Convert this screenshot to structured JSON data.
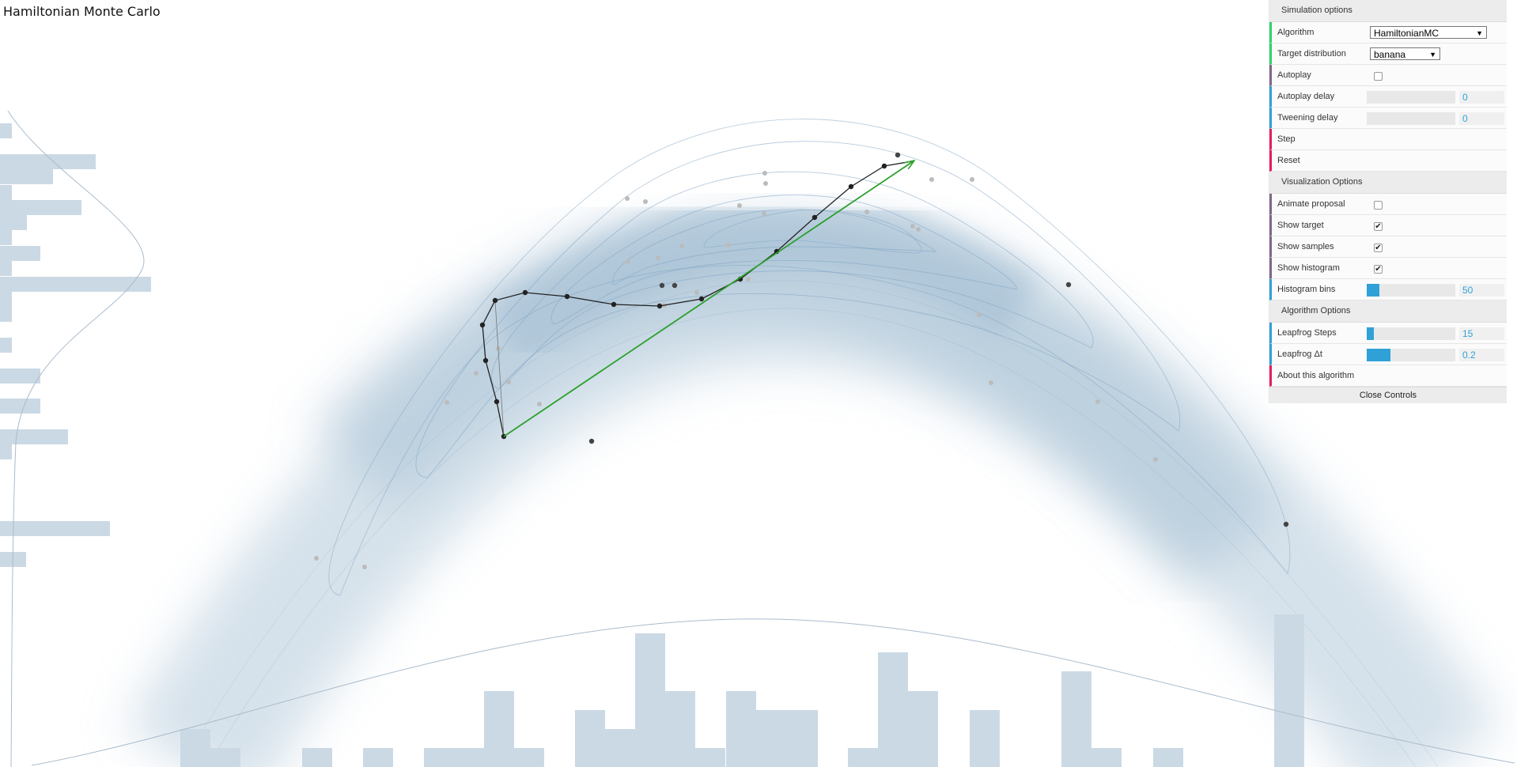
{
  "app": {
    "title": "Hamiltonian Monte Carlo"
  },
  "controls": {
    "sections": {
      "simulation": "Simulation options",
      "visualization": "Visualization Options",
      "algorithm": "Algorithm Options"
    },
    "algorithm": {
      "label": "Algorithm",
      "value": "HamiltonianMC"
    },
    "target": {
      "label": "Target distribution",
      "value": "banana"
    },
    "autoplay": {
      "label": "Autoplay",
      "checked": false
    },
    "autoplay_delay": {
      "label": "Autoplay delay",
      "value": "0",
      "fraction": 0
    },
    "tweening_delay": {
      "label": "Tweening delay",
      "value": "0",
      "fraction": 0
    },
    "step": {
      "label": "Step"
    },
    "reset": {
      "label": "Reset"
    },
    "animate_proposal": {
      "label": "Animate proposal",
      "checked": false
    },
    "show_target": {
      "label": "Show target",
      "checked": true
    },
    "show_samples": {
      "label": "Show samples",
      "checked": true
    },
    "show_histogram": {
      "label": "Show histogram",
      "checked": true
    },
    "histogram_bins": {
      "label": "Histogram bins",
      "value": "50",
      "fraction": 0.14
    },
    "leapfrog_steps": {
      "label": "Leapfrog Steps",
      "value": "15",
      "fraction": 0.08
    },
    "leapfrog_dt": {
      "label": "Leapfrog Δt",
      "value": "0.2",
      "fraction": 0.27
    },
    "about": {
      "label": "About this algorithm"
    },
    "close": {
      "label": "Close Controls"
    }
  },
  "colors": {
    "accent": "#2fa1d6",
    "density": "#b4cadb",
    "contour": "#7ea3c2",
    "histogram": "#cbd9e5",
    "trajectory": "#222222",
    "proposal_arrow": "#2ca02c",
    "faded_sample": "#bbbbbb"
  }
}
